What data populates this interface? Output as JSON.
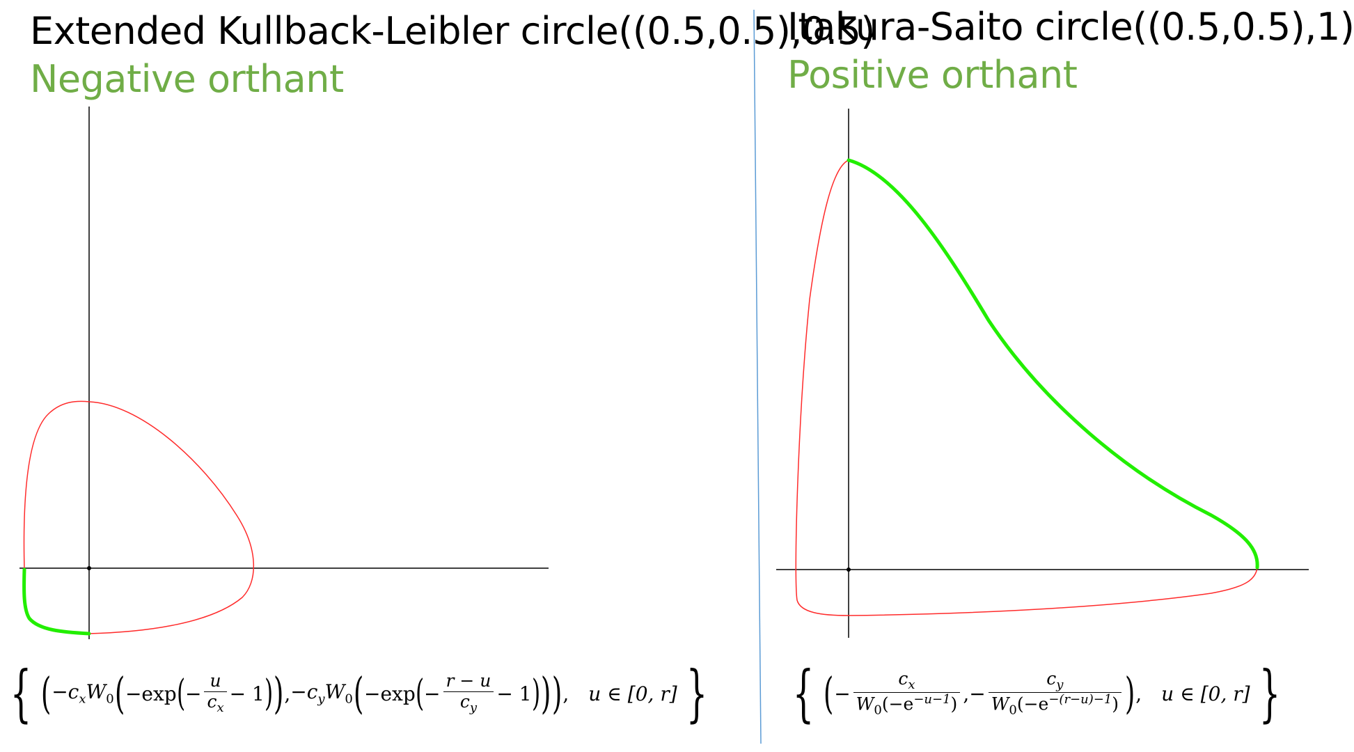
{
  "left_panel": {
    "title": "Extended Kullback-Leibler circle((0.5,0.5),0.5)",
    "subtitle": "Negative orthant",
    "formula": {
      "part1_prefix": "−c",
      "part1_sub": "x",
      "part1_W": "W",
      "part1_W_sub": "0",
      "exp": "−exp",
      "frac1_num": "u",
      "frac1_den": "c",
      "frac1_den_sub": "x",
      "minus_one": "− 1",
      "sep": ",",
      "part2_prefix": "−c",
      "part2_sub": "y",
      "frac2_num": "r − u",
      "frac2_den": "c",
      "frac2_den_sub": "y",
      "domain": "u ∈ [0, r]"
    }
  },
  "right_panel": {
    "title": "Itakura-Saito circle((0.5,0.5),1)",
    "subtitle": "Positive orthant",
    "formula": {
      "frac1_num": "c",
      "frac1_num_sub": "x",
      "frac1_den": "W",
      "frac1_den_sub": "0",
      "frac1_den_arg": "(−e",
      "frac1_den_exp": "−u−1",
      "frac1_den_close": ")",
      "frac2_num": "c",
      "frac2_num_sub": "y",
      "frac2_den": "W",
      "frac2_den_sub": "0",
      "frac2_den_arg": "(−e",
      "frac2_den_exp": "−(r−u)−1",
      "frac2_den_close": ")",
      "minus": "−",
      "sep": ",",
      "domain": "u ∈ [0, r]"
    }
  },
  "colors": {
    "title": "#000000",
    "subtitle": "#70ad47",
    "curve": "#ff2a2a",
    "highlight": "#22ee00",
    "axis": "#000000",
    "divider": "#5b9bd5"
  }
}
